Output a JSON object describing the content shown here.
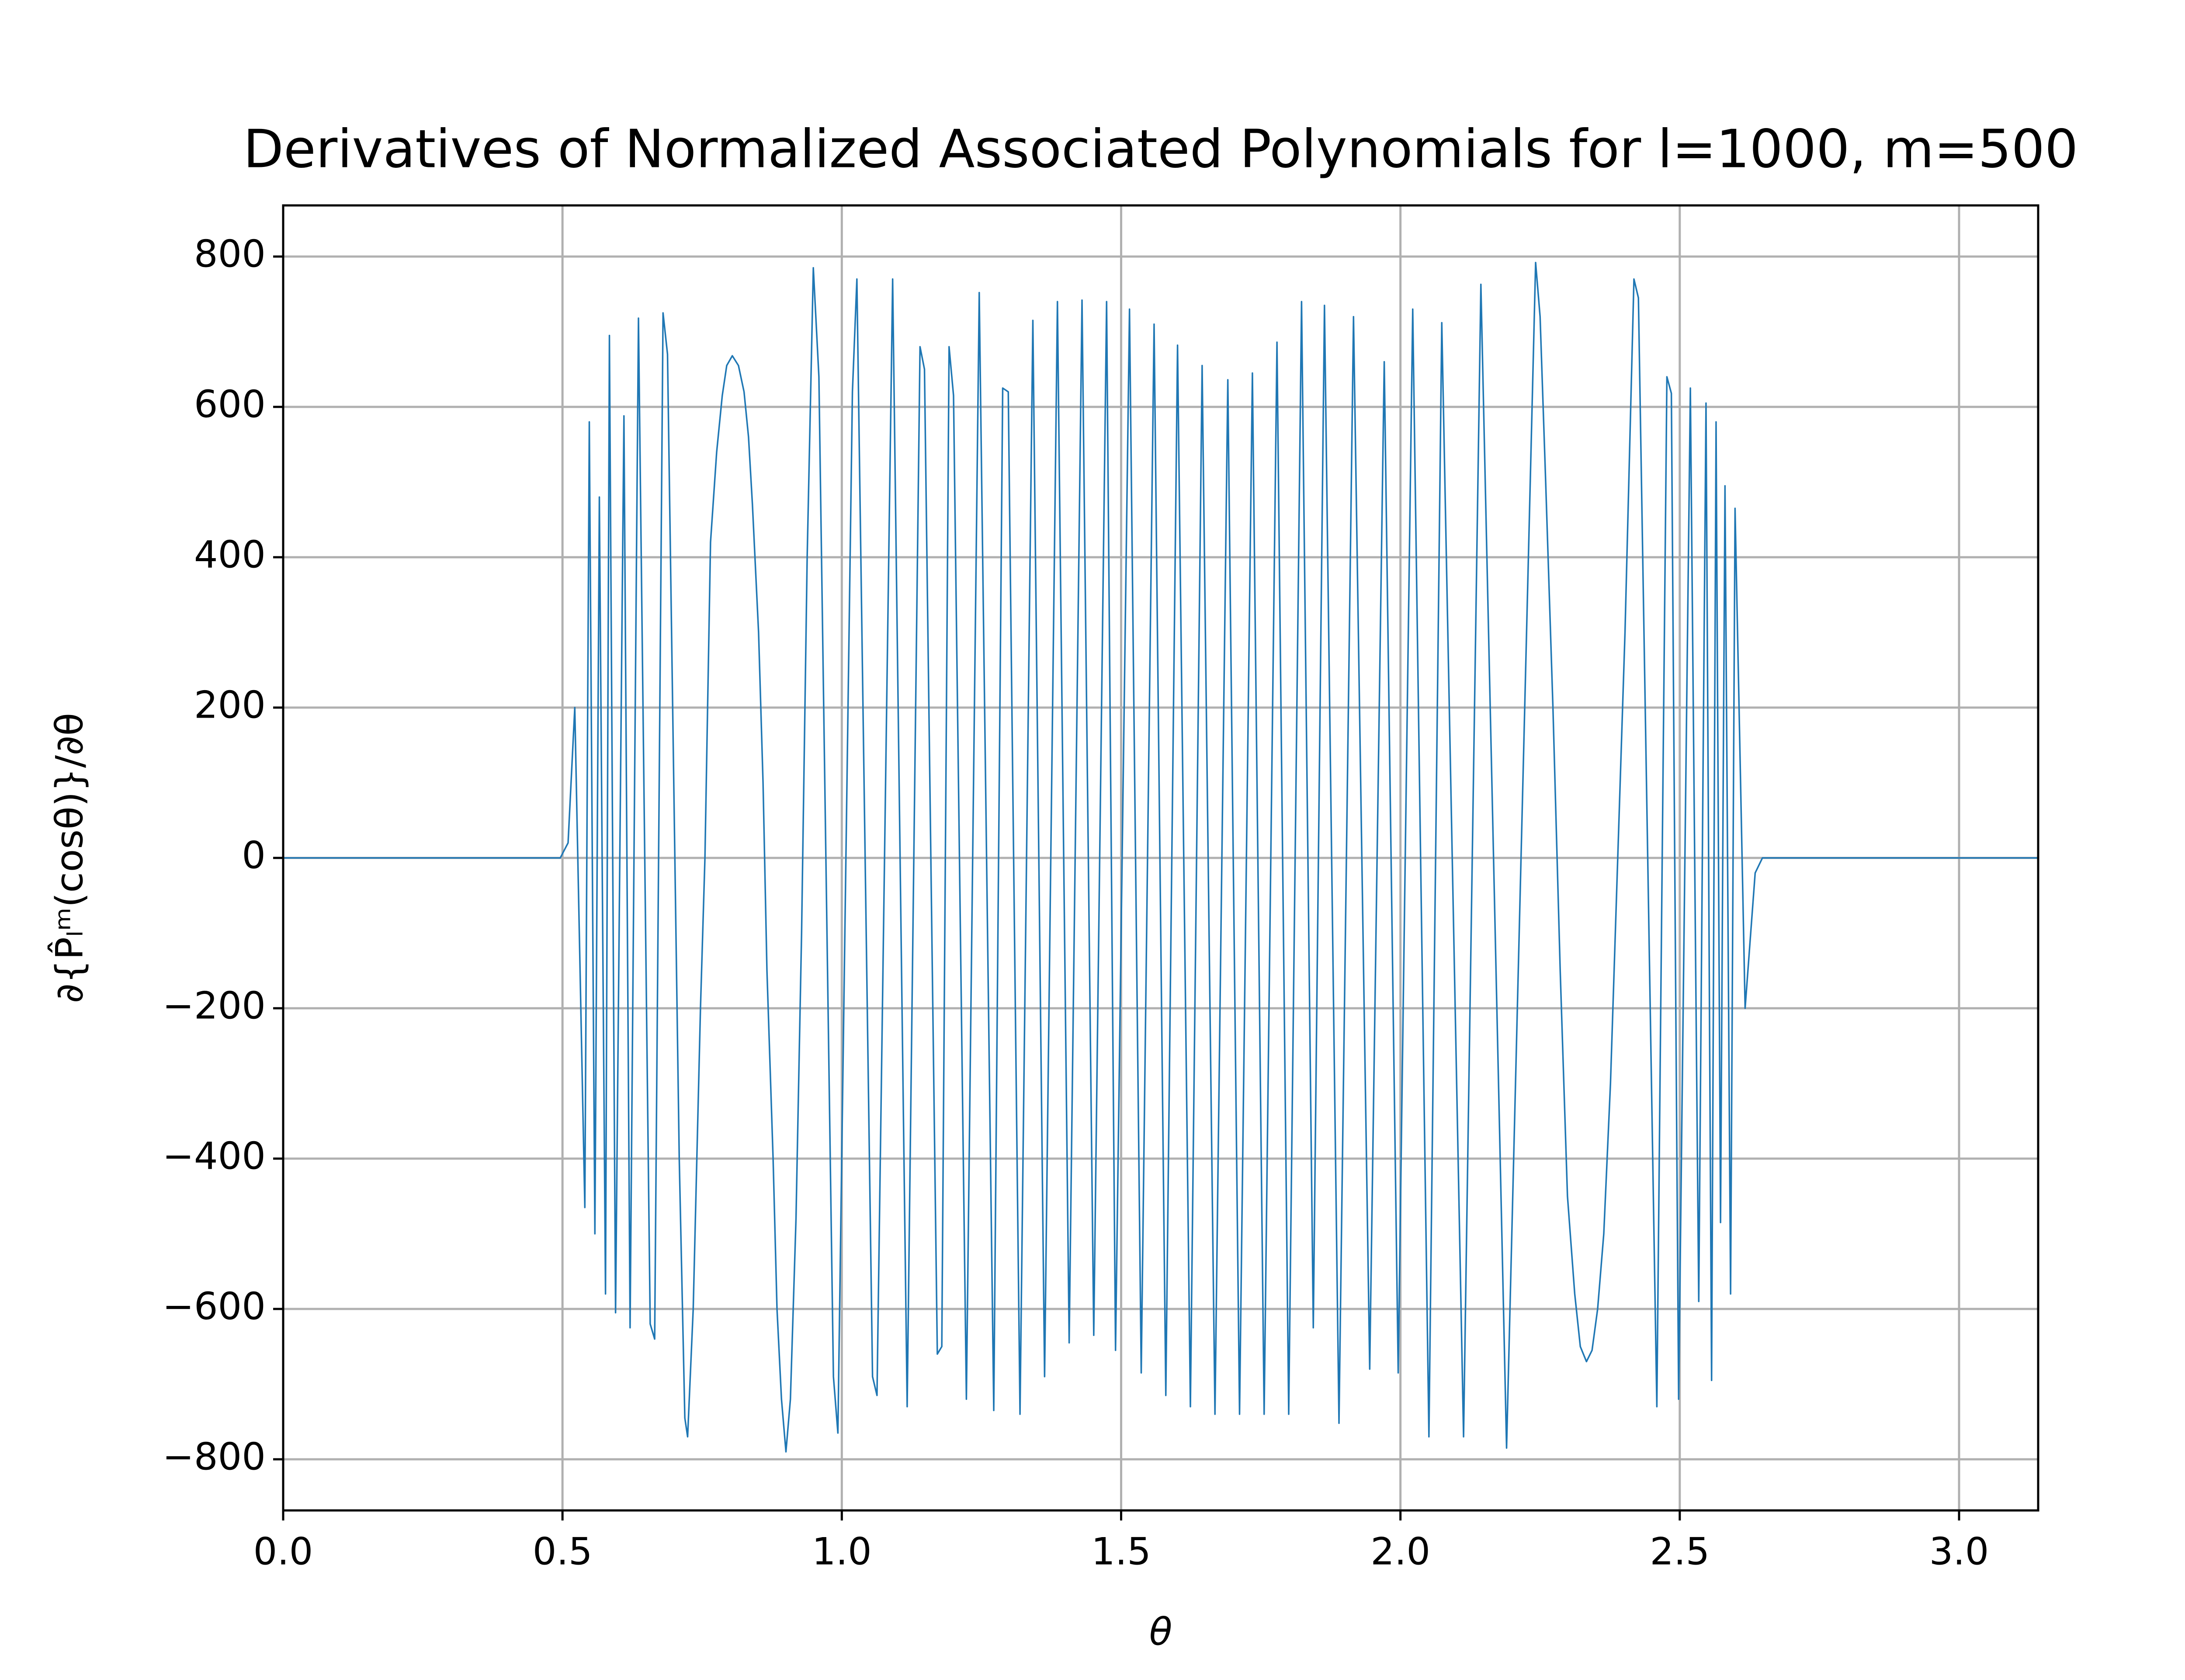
{
  "chart_data": {
    "type": "line",
    "title": "Derivatives of Normalized Associated Polynomials for l=1000, m=500",
    "xlabel": "θ",
    "ylabel": "∂{P̂ₗᵐ(cosθ)}/∂θ",
    "color": "#1f77b4",
    "grid": true,
    "xlim": [
      0,
      3.1416
    ],
    "ylim": [
      -868,
      868
    ],
    "xticks": [
      {
        "value": 0,
        "label": "0.0"
      },
      0.5,
      {
        "value": 1,
        "label": "1.0"
      },
      1.5,
      {
        "value": 2,
        "label": "2.0"
      },
      2.5,
      {
        "value": 3,
        "label": "3.0"
      }
    ],
    "yticks": [
      {
        "value": -800,
        "label": "−800"
      },
      {
        "value": -600,
        "label": "−600"
      },
      {
        "value": -400,
        "label": "−400"
      },
      {
        "value": -200,
        "label": "−200"
      },
      0,
      200,
      400,
      600,
      800
    ],
    "x": [
      0,
      0.496,
      0.51,
      0.522,
      0.54,
      0.548,
      0.558,
      0.566,
      0.577,
      0.584,
      0.595,
      0.61,
      0.621,
      0.636,
      0.657,
      0.665,
      0.68,
      0.688,
      0.709,
      0.719,
      0.724,
      0.734,
      0.747,
      0.755,
      0.765,
      0.776,
      0.786,
      0.794,
      0.804,
      0.815,
      0.825,
      0.833,
      0.84,
      0.851,
      0.859,
      0.866,
      0.877,
      0.884,
      0.892,
      0.9,
      0.908,
      0.918,
      0.928,
      0.938,
      0.949,
      0.959,
      0.985,
      0.993,
      1.019,
      1.027,
      1.055,
      1.063,
      1.091,
      1.117,
      1.14,
      1.148,
      1.171,
      1.179,
      1.192,
      1.2,
      1.223,
      1.246,
      1.272,
      1.288,
      1.298,
      1.319,
      1.342,
      1.363,
      1.386,
      1.407,
      1.43,
      1.451,
      1.474,
      1.49,
      1.515,
      1.536,
      1.559,
      1.58,
      1.601,
      1.624,
      1.645,
      1.668,
      1.691,
      1.712,
      1.735,
      1.756,
      1.779,
      1.8,
      1.823,
      1.844,
      1.864,
      1.89,
      1.916,
      1.945,
      1.971,
      1.996,
      2.022,
      2.051,
      2.074,
      2.113,
      2.144,
      2.19,
      2.242,
      2.25,
      2.26,
      2.273,
      2.286,
      2.299,
      2.312,
      2.322,
      2.333,
      2.343,
      2.353,
      2.364,
      2.376,
      2.389,
      2.402,
      2.418,
      2.426,
      2.459,
      2.477,
      2.485,
      2.498,
      2.519,
      2.534,
      2.547,
      2.557,
      2.565,
      2.573,
      2.581,
      2.591,
      2.599,
      2.617,
      2.635,
      2.648,
      3.1416
    ],
    "values": [
      0,
      0,
      20,
      200,
      -465,
      580,
      -500,
      480,
      -580,
      695,
      -605,
      588,
      -625,
      718,
      -620,
      -640,
      725,
      670,
      -400,
      -745,
      -770,
      -600,
      -200,
      0,
      420,
      540,
      615,
      655,
      668,
      655,
      620,
      560,
      470,
      300,
      100,
      -150,
      -400,
      -600,
      -720,
      -790,
      -720,
      -480,
      -100,
      400,
      785,
      640,
      -690,
      -765,
      620,
      770,
      -690,
      -715,
      770,
      -730,
      680,
      650,
      -660,
      -650,
      680,
      615,
      -720,
      752,
      -735,
      625,
      620,
      -740,
      715,
      -690,
      740,
      -645,
      742,
      -635,
      740,
      -655,
      730,
      -685,
      710,
      -715,
      682,
      -730,
      655,
      -740,
      636,
      -740,
      645,
      -740,
      686,
      -740,
      740,
      -625,
      735,
      -752,
      720,
      -680,
      660,
      -685,
      730,
      -770,
      712,
      -770,
      763,
      -785,
      792,
      720,
      500,
      200,
      -150,
      -450,
      -580,
      -650,
      -670,
      -655,
      -600,
      -500,
      -300,
      0,
      300,
      770,
      745,
      -730,
      640,
      618,
      -720,
      625,
      -590,
      605,
      -695,
      580,
      -485,
      495,
      -580,
      465,
      -200,
      -20,
      0,
      0
    ]
  }
}
